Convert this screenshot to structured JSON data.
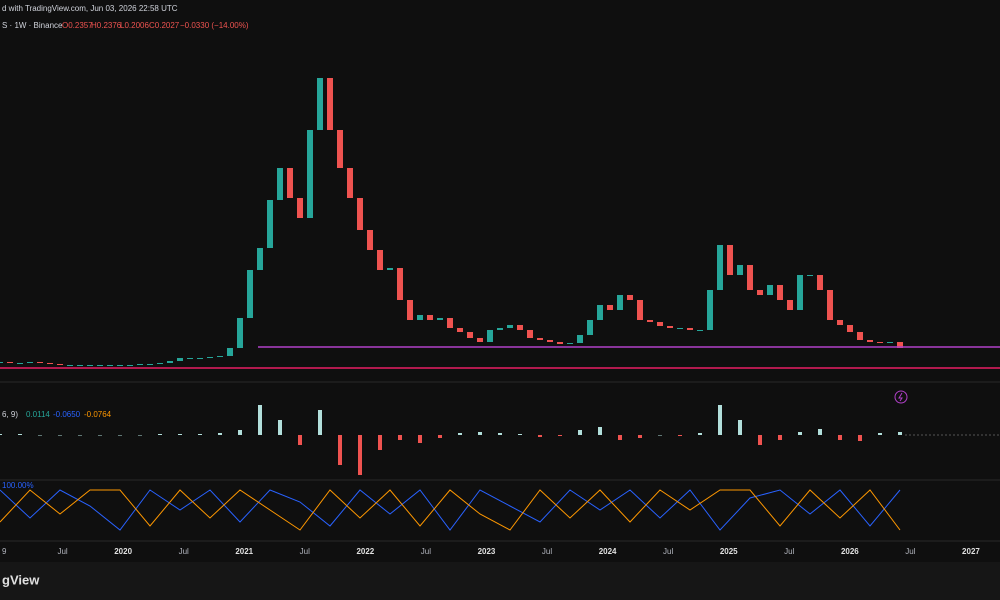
{
  "header": {
    "source": "d with TradingView.com, Jun 03, 2026 22:58 UTC",
    "symbol": "S · 1W · Binance",
    "open": "O0.2357",
    "high": "H0.2376",
    "low": "L0.2006",
    "close": "C0.2027",
    "change": "−0.0330 (−14.00%)"
  },
  "chart_data": {
    "type": "candlestick",
    "closes": [
      0.06,
      0.05,
      0.05,
      0.06,
      0.05,
      0.04,
      0.03,
      0.03,
      0.03,
      0.03,
      0.03,
      0.03,
      0.03,
      0.03,
      0.04,
      0.04,
      0.05,
      0.07,
      0.1,
      0.1,
      0.1,
      0.11,
      0.12,
      0.2,
      0.5,
      0.98,
      1.2,
      1.68,
      2.0,
      1.7,
      1.5,
      2.38,
      2.9,
      2.38,
      2.0,
      1.7,
      1.38,
      1.18,
      0.98,
      1.0,
      0.68,
      0.48,
      0.53,
      0.48,
      0.5,
      0.4,
      0.36,
      0.3,
      0.26,
      0.38,
      0.4,
      0.43,
      0.38,
      0.3,
      0.28,
      0.26,
      0.24,
      0.25,
      0.33,
      0.48,
      0.63,
      0.58,
      0.73,
      0.68,
      0.48,
      0.46,
      0.42,
      0.4,
      0.4,
      0.38,
      0.38,
      0.78,
      1.23,
      0.93,
      1.03,
      0.78,
      0.73,
      0.83,
      0.68,
      0.58,
      0.93,
      0.93,
      0.78,
      0.48,
      0.43,
      0.36,
      0.28,
      0.26,
      0.25,
      0.26,
      0.2
    ],
    "up_color": "#26a69a",
    "down_color": "#ef5350",
    "ylim": [
      0,
      3.48
    ],
    "hlines": [
      {
        "value": 0.21,
        "color": "#b040c8"
      },
      {
        "value": 0,
        "color": "#e91e63"
      }
    ],
    "x_labels": [
      "9",
      "Jul",
      "2020",
      "Jul",
      "2021",
      "Jul",
      "2022",
      "Jul",
      "2023",
      "Jul",
      "2024",
      "Jul",
      "2025",
      "Jul",
      "2026",
      "Jul",
      "2027"
    ]
  },
  "macd": {
    "params": "6, 9)",
    "hist_value": "0.0114",
    "macd_value": "-0.0650",
    "signal_value": "-0.0764",
    "histogram": [
      0.01,
      0.01,
      0,
      0,
      0,
      0,
      0,
      0,
      0.01,
      0.01,
      0.01,
      0.02,
      0.05,
      0.3,
      0.15,
      -0.1,
      0.25,
      -0.3,
      -0.4,
      -0.15,
      -0.05,
      -0.08,
      -0.03,
      0.02,
      0.03,
      0.02,
      0.01,
      -0.02,
      -0.01,
      0.05,
      0.08,
      -0.05,
      -0.03,
      0,
      -0.01,
      0.02,
      0.3,
      0.15,
      -0.1,
      -0.05,
      0.03,
      0.06,
      -0.05,
      -0.06,
      0.02,
      0.03
    ],
    "ylim": [
      -0.4,
      0.4
    ]
  },
  "aroon": {
    "label": "100.00%",
    "ylim": [
      0,
      100
    ],
    "series": [
      {
        "color": "#2962ff",
        "values": [
          100,
          30,
          100,
          60,
          0,
          100,
          50,
          100,
          20,
          100,
          70,
          10,
          100,
          40,
          100,
          0,
          100,
          60,
          20,
          100,
          50,
          100,
          30,
          100,
          0,
          80,
          100,
          40,
          100,
          10,
          100
        ]
      },
      {
        "color": "#ff9800",
        "values": [
          20,
          100,
          40,
          100,
          100,
          10,
          100,
          30,
          100,
          50,
          0,
          100,
          30,
          100,
          10,
          100,
          40,
          0,
          100,
          30,
          100,
          20,
          100,
          50,
          100,
          100,
          10,
          100,
          30,
          100,
          0
        ]
      }
    ]
  },
  "footer": {
    "logo": "gView"
  }
}
